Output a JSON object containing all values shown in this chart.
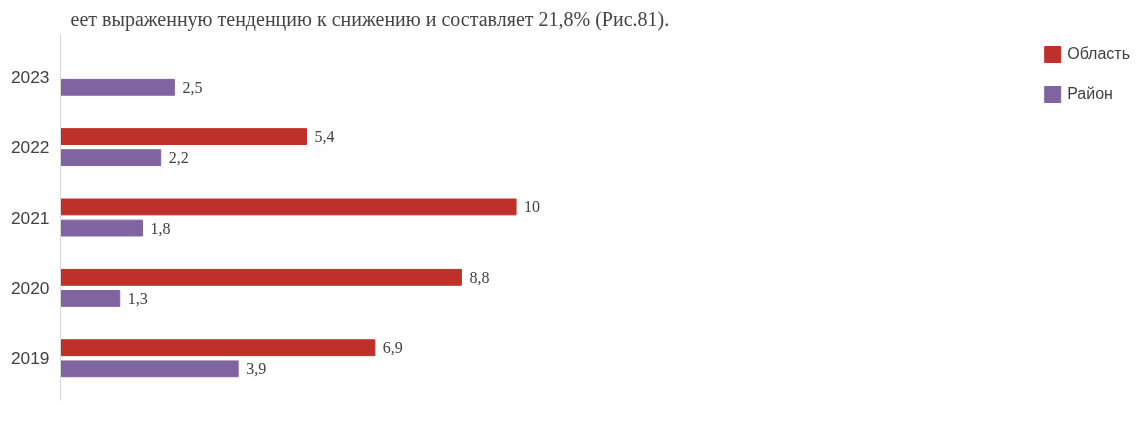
{
  "chart_data": {
    "type": "bar",
    "orientation": "horizontal",
    "annotations": [
      "еет выраженную тенденцию к снижению и составляет  21,8% (Рис.81)."
    ],
    "categories": [
      "2023",
      "2022",
      "2021",
      "2020",
      "2019"
    ],
    "series": [
      {
        "name": "Область",
        "color": "#c0302b",
        "values": [
          null,
          5.4,
          10,
          8.8,
          6.9
        ],
        "value_labels": [
          null,
          "5,4",
          "10",
          "8,8",
          "6,9"
        ]
      },
      {
        "name": "Район",
        "color": "#8064a2",
        "values": [
          2.5,
          2.2,
          1.8,
          1.3,
          3.9
        ],
        "value_labels": [
          "2,5",
          "2,2",
          "1,8",
          "1,3",
          "3,9"
        ]
      }
    ],
    "legend": "right",
    "grid": false
  }
}
